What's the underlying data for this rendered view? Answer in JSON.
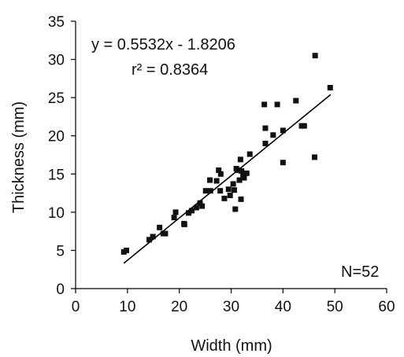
{
  "chart_data": {
    "type": "scatter",
    "title": "",
    "xlabel": "Width (mm)",
    "ylabel": "Thickness (mm)",
    "xlim": [
      0,
      60
    ],
    "ylim": [
      0,
      35
    ],
    "xticks": [
      0,
      10,
      20,
      30,
      40,
      50,
      60
    ],
    "yticks": [
      0,
      5,
      10,
      15,
      20,
      25,
      30,
      35
    ],
    "xtick_labels": [
      "0",
      "10",
      "20",
      "30",
      "40",
      "50",
      "60"
    ],
    "ytick_labels": [
      "0",
      "5",
      "10",
      "15",
      "20",
      "25",
      "30",
      "35"
    ],
    "grid": false,
    "legend": "none",
    "marker": "square",
    "color": "#111111",
    "trendline": {
      "type": "linear",
      "slope": 0.5532,
      "intercept": -1.8206,
      "x_range": [
        9.3,
        49.2
      ]
    },
    "annotations": {
      "equation": "y = 0.5532x - 1.8206",
      "r_squared": "r² = 0.8364",
      "n": "N=52"
    },
    "points": [
      {
        "x": 9.3,
        "y": 4.8
      },
      {
        "x": 9.8,
        "y": 5.0
      },
      {
        "x": 14.2,
        "y": 6.4
      },
      {
        "x": 14.9,
        "y": 6.8
      },
      {
        "x": 16.2,
        "y": 8.0
      },
      {
        "x": 16.9,
        "y": 7.2
      },
      {
        "x": 17.3,
        "y": 7.2
      },
      {
        "x": 19.0,
        "y": 9.3
      },
      {
        "x": 19.3,
        "y": 10.0
      },
      {
        "x": 20.9,
        "y": 8.5
      },
      {
        "x": 21.8,
        "y": 9.9
      },
      {
        "x": 22.4,
        "y": 10.2
      },
      {
        "x": 23.3,
        "y": 10.6
      },
      {
        "x": 24.0,
        "y": 11.2
      },
      {
        "x": 24.4,
        "y": 10.8
      },
      {
        "x": 25.1,
        "y": 12.8
      },
      {
        "x": 25.9,
        "y": 14.2
      },
      {
        "x": 26.0,
        "y": 12.8
      },
      {
        "x": 27.2,
        "y": 14.1
      },
      {
        "x": 27.6,
        "y": 15.5
      },
      {
        "x": 27.9,
        "y": 12.8
      },
      {
        "x": 28.0,
        "y": 15.0
      },
      {
        "x": 28.7,
        "y": 11.8
      },
      {
        "x": 29.8,
        "y": 12.2
      },
      {
        "x": 30.4,
        "y": 13.7
      },
      {
        "x": 30.6,
        "y": 12.9
      },
      {
        "x": 30.8,
        "y": 10.4
      },
      {
        "x": 31.0,
        "y": 15.7
      },
      {
        "x": 31.2,
        "y": 15.5
      },
      {
        "x": 31.6,
        "y": 14.2
      },
      {
        "x": 31.8,
        "y": 16.9
      },
      {
        "x": 31.9,
        "y": 11.7
      },
      {
        "x": 32.0,
        "y": 15.4
      },
      {
        "x": 32.3,
        "y": 14.9
      },
      {
        "x": 32.5,
        "y": 14.5
      },
      {
        "x": 33.6,
        "y": 17.6
      },
      {
        "x": 36.4,
        "y": 24.1
      },
      {
        "x": 36.6,
        "y": 21.0
      },
      {
        "x": 36.6,
        "y": 19.0
      },
      {
        "x": 38.1,
        "y": 20.1
      },
      {
        "x": 38.9,
        "y": 24.1
      },
      {
        "x": 40.0,
        "y": 20.7
      },
      {
        "x": 40.0,
        "y": 16.5
      },
      {
        "x": 42.5,
        "y": 24.6
      },
      {
        "x": 43.6,
        "y": 21.3
      },
      {
        "x": 44.1,
        "y": 21.3
      },
      {
        "x": 46.1,
        "y": 17.2
      },
      {
        "x": 46.2,
        "y": 30.5
      },
      {
        "x": 49.1,
        "y": 26.3
      },
      {
        "x": 29.5,
        "y": 13.0
      },
      {
        "x": 21.0,
        "y": 8.4
      },
      {
        "x": 33.0,
        "y": 15.1
      }
    ]
  }
}
